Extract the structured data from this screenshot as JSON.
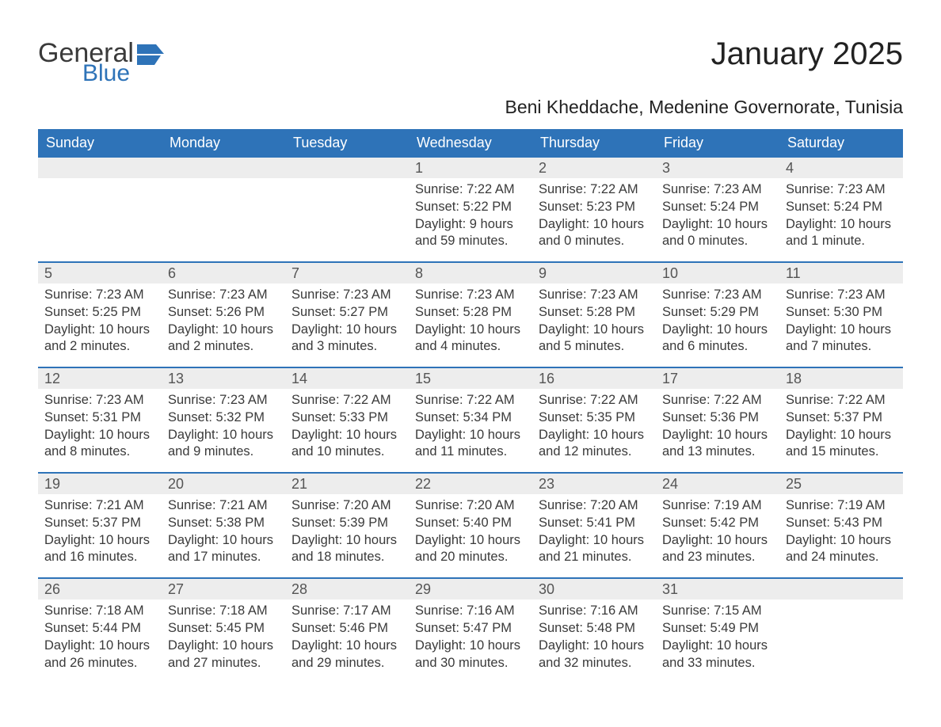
{
  "brand": {
    "word1": "General",
    "word2": "Blue",
    "flag_color": "#2e73b8"
  },
  "title": "January 2025",
  "subtitle": "Beni Kheddache, Medenine Governorate, Tunisia",
  "header_bg": "#2e73b8",
  "header_fg": "#ffffff",
  "strip_bg": "#ededed",
  "text_color": "#3a3a3a",
  "dayheaders": [
    "Sunday",
    "Monday",
    "Tuesday",
    "Wednesday",
    "Thursday",
    "Friday",
    "Saturday"
  ],
  "weeks": [
    [
      null,
      null,
      null,
      {
        "n": "1",
        "sunrise": "Sunrise: 7:22 AM",
        "sunset": "Sunset: 5:22 PM",
        "d1": "Daylight: 9 hours",
        "d2": "and 59 minutes."
      },
      {
        "n": "2",
        "sunrise": "Sunrise: 7:22 AM",
        "sunset": "Sunset: 5:23 PM",
        "d1": "Daylight: 10 hours",
        "d2": "and 0 minutes."
      },
      {
        "n": "3",
        "sunrise": "Sunrise: 7:23 AM",
        "sunset": "Sunset: 5:24 PM",
        "d1": "Daylight: 10 hours",
        "d2": "and 0 minutes."
      },
      {
        "n": "4",
        "sunrise": "Sunrise: 7:23 AM",
        "sunset": "Sunset: 5:24 PM",
        "d1": "Daylight: 10 hours",
        "d2": "and 1 minute."
      }
    ],
    [
      {
        "n": "5",
        "sunrise": "Sunrise: 7:23 AM",
        "sunset": "Sunset: 5:25 PM",
        "d1": "Daylight: 10 hours",
        "d2": "and 2 minutes."
      },
      {
        "n": "6",
        "sunrise": "Sunrise: 7:23 AM",
        "sunset": "Sunset: 5:26 PM",
        "d1": "Daylight: 10 hours",
        "d2": "and 2 minutes."
      },
      {
        "n": "7",
        "sunrise": "Sunrise: 7:23 AM",
        "sunset": "Sunset: 5:27 PM",
        "d1": "Daylight: 10 hours",
        "d2": "and 3 minutes."
      },
      {
        "n": "8",
        "sunrise": "Sunrise: 7:23 AM",
        "sunset": "Sunset: 5:28 PM",
        "d1": "Daylight: 10 hours",
        "d2": "and 4 minutes."
      },
      {
        "n": "9",
        "sunrise": "Sunrise: 7:23 AM",
        "sunset": "Sunset: 5:28 PM",
        "d1": "Daylight: 10 hours",
        "d2": "and 5 minutes."
      },
      {
        "n": "10",
        "sunrise": "Sunrise: 7:23 AM",
        "sunset": "Sunset: 5:29 PM",
        "d1": "Daylight: 10 hours",
        "d2": "and 6 minutes."
      },
      {
        "n": "11",
        "sunrise": "Sunrise: 7:23 AM",
        "sunset": "Sunset: 5:30 PM",
        "d1": "Daylight: 10 hours",
        "d2": "and 7 minutes."
      }
    ],
    [
      {
        "n": "12",
        "sunrise": "Sunrise: 7:23 AM",
        "sunset": "Sunset: 5:31 PM",
        "d1": "Daylight: 10 hours",
        "d2": "and 8 minutes."
      },
      {
        "n": "13",
        "sunrise": "Sunrise: 7:23 AM",
        "sunset": "Sunset: 5:32 PM",
        "d1": "Daylight: 10 hours",
        "d2": "and 9 minutes."
      },
      {
        "n": "14",
        "sunrise": "Sunrise: 7:22 AM",
        "sunset": "Sunset: 5:33 PM",
        "d1": "Daylight: 10 hours",
        "d2": "and 10 minutes."
      },
      {
        "n": "15",
        "sunrise": "Sunrise: 7:22 AM",
        "sunset": "Sunset: 5:34 PM",
        "d1": "Daylight: 10 hours",
        "d2": "and 11 minutes."
      },
      {
        "n": "16",
        "sunrise": "Sunrise: 7:22 AM",
        "sunset": "Sunset: 5:35 PM",
        "d1": "Daylight: 10 hours",
        "d2": "and 12 minutes."
      },
      {
        "n": "17",
        "sunrise": "Sunrise: 7:22 AM",
        "sunset": "Sunset: 5:36 PM",
        "d1": "Daylight: 10 hours",
        "d2": "and 13 minutes."
      },
      {
        "n": "18",
        "sunrise": "Sunrise: 7:22 AM",
        "sunset": "Sunset: 5:37 PM",
        "d1": "Daylight: 10 hours",
        "d2": "and 15 minutes."
      }
    ],
    [
      {
        "n": "19",
        "sunrise": "Sunrise: 7:21 AM",
        "sunset": "Sunset: 5:37 PM",
        "d1": "Daylight: 10 hours",
        "d2": "and 16 minutes."
      },
      {
        "n": "20",
        "sunrise": "Sunrise: 7:21 AM",
        "sunset": "Sunset: 5:38 PM",
        "d1": "Daylight: 10 hours",
        "d2": "and 17 minutes."
      },
      {
        "n": "21",
        "sunrise": "Sunrise: 7:20 AM",
        "sunset": "Sunset: 5:39 PM",
        "d1": "Daylight: 10 hours",
        "d2": "and 18 minutes."
      },
      {
        "n": "22",
        "sunrise": "Sunrise: 7:20 AM",
        "sunset": "Sunset: 5:40 PM",
        "d1": "Daylight: 10 hours",
        "d2": "and 20 minutes."
      },
      {
        "n": "23",
        "sunrise": "Sunrise: 7:20 AM",
        "sunset": "Sunset: 5:41 PM",
        "d1": "Daylight: 10 hours",
        "d2": "and 21 minutes."
      },
      {
        "n": "24",
        "sunrise": "Sunrise: 7:19 AM",
        "sunset": "Sunset: 5:42 PM",
        "d1": "Daylight: 10 hours",
        "d2": "and 23 minutes."
      },
      {
        "n": "25",
        "sunrise": "Sunrise: 7:19 AM",
        "sunset": "Sunset: 5:43 PM",
        "d1": "Daylight: 10 hours",
        "d2": "and 24 minutes."
      }
    ],
    [
      {
        "n": "26",
        "sunrise": "Sunrise: 7:18 AM",
        "sunset": "Sunset: 5:44 PM",
        "d1": "Daylight: 10 hours",
        "d2": "and 26 minutes."
      },
      {
        "n": "27",
        "sunrise": "Sunrise: 7:18 AM",
        "sunset": "Sunset: 5:45 PM",
        "d1": "Daylight: 10 hours",
        "d2": "and 27 minutes."
      },
      {
        "n": "28",
        "sunrise": "Sunrise: 7:17 AM",
        "sunset": "Sunset: 5:46 PM",
        "d1": "Daylight: 10 hours",
        "d2": "and 29 minutes."
      },
      {
        "n": "29",
        "sunrise": "Sunrise: 7:16 AM",
        "sunset": "Sunset: 5:47 PM",
        "d1": "Daylight: 10 hours",
        "d2": "and 30 minutes."
      },
      {
        "n": "30",
        "sunrise": "Sunrise: 7:16 AM",
        "sunset": "Sunset: 5:48 PM",
        "d1": "Daylight: 10 hours",
        "d2": "and 32 minutes."
      },
      {
        "n": "31",
        "sunrise": "Sunrise: 7:15 AM",
        "sunset": "Sunset: 5:49 PM",
        "d1": "Daylight: 10 hours",
        "d2": "and 33 minutes."
      },
      null
    ]
  ]
}
